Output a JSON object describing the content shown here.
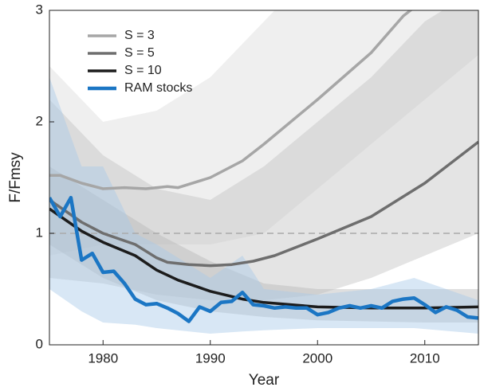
{
  "chart_data": {
    "type": "line",
    "xlabel": "Year",
    "ylabel": "F/Fmsy",
    "xlim": [
      1975,
      2015
    ],
    "ylim": [
      0,
      3
    ],
    "xticks": [
      1980,
      1990,
      2000,
      2010
    ],
    "yticks": [
      0,
      1,
      2,
      3
    ],
    "reference_line": 1,
    "legend": "upper left",
    "series": [
      {
        "name": "S = 3",
        "color": "#a6a6a6",
        "band_color": "#dcdcdc",
        "x": [
          1975,
          1976,
          1978,
          1980,
          1982,
          1984,
          1985,
          1986,
          1987,
          1990,
          1993,
          1995,
          2000,
          2005,
          2008,
          2010
        ],
        "values": [
          1.52,
          1.52,
          1.45,
          1.4,
          1.41,
          1.4,
          1.41,
          1.42,
          1.41,
          1.5,
          1.65,
          1.8,
          2.2,
          2.62,
          2.95,
          3.1
        ],
        "band_x": [
          1975,
          1980,
          1985,
          1990,
          1995,
          2000,
          2005,
          2010,
          2015
        ],
        "band_upper": [
          2.5,
          2.0,
          2.1,
          2.4,
          2.9,
          3.4,
          3.8,
          4.2,
          4.6
        ],
        "band_lower": [
          0.8,
          0.9,
          0.9,
          0.9,
          1.0,
          1.4,
          1.8,
          2.2,
          2.6
        ]
      },
      {
        "name": "S = 5",
        "color": "#6e6e6e",
        "band_color": "#c4c4c4",
        "x": [
          1975,
          1978,
          1980,
          1983,
          1985,
          1986,
          1988,
          1990,
          1992,
          1994,
          1996,
          2000,
          2005,
          2010,
          2015
        ],
        "values": [
          1.3,
          1.1,
          1.0,
          0.9,
          0.78,
          0.74,
          0.72,
          0.71,
          0.72,
          0.75,
          0.8,
          0.95,
          1.15,
          1.45,
          1.82
        ],
        "band_x": [
          1975,
          1980,
          1985,
          1990,
          1995,
          2000,
          2005,
          2010,
          2015
        ],
        "band_upper": [
          2.2,
          1.7,
          1.4,
          1.3,
          1.6,
          2.0,
          2.4,
          2.9,
          3.2
        ],
        "band_lower": [
          0.6,
          0.55,
          0.45,
          0.4,
          0.4,
          0.45,
          0.6,
          0.8,
          1.0
        ]
      },
      {
        "name": "S = 10",
        "color": "#1c1c1c",
        "band_color": "#b8b8b8",
        "x": [
          1975,
          1978,
          1980,
          1983,
          1985,
          1987,
          1990,
          1993,
          1995,
          2000,
          2005,
          2010,
          2015
        ],
        "values": [
          1.22,
          1.02,
          0.92,
          0.8,
          0.67,
          0.58,
          0.48,
          0.41,
          0.38,
          0.34,
          0.33,
          0.33,
          0.34
        ],
        "band_x": [
          1975,
          1980,
          1985,
          1990,
          1995,
          2000,
          2005,
          2010,
          2015
        ],
        "band_upper": [
          1.6,
          1.3,
          1.0,
          0.75,
          0.55,
          0.5,
          0.5,
          0.5,
          0.5
        ],
        "band_lower": [
          0.9,
          0.6,
          0.4,
          0.3,
          0.25,
          0.22,
          0.21,
          0.2,
          0.2
        ]
      },
      {
        "name": "RAM stocks",
        "color": "#1b76c4",
        "band_color": "#a9c9e8",
        "x": [
          1975,
          1976,
          1977,
          1978,
          1979,
          1980,
          1981,
          1982,
          1983,
          1984,
          1985,
          1986,
          1987,
          1988,
          1989,
          1990,
          1991,
          1992,
          1993,
          1994,
          1995,
          1996,
          1997,
          1998,
          1999,
          2000,
          2001,
          2002,
          2003,
          2004,
          2005,
          2006,
          2007,
          2008,
          2009,
          2010,
          2011,
          2012,
          2013,
          2014,
          2015
        ],
        "values": [
          1.32,
          1.15,
          1.32,
          0.76,
          0.82,
          0.65,
          0.66,
          0.55,
          0.41,
          0.36,
          0.37,
          0.33,
          0.28,
          0.21,
          0.34,
          0.3,
          0.38,
          0.39,
          0.47,
          0.36,
          0.35,
          0.33,
          0.34,
          0.33,
          0.33,
          0.27,
          0.29,
          0.33,
          0.35,
          0.33,
          0.35,
          0.33,
          0.39,
          0.41,
          0.42,
          0.36,
          0.29,
          0.34,
          0.31,
          0.25,
          0.24
        ],
        "band_x": [
          1975,
          1978,
          1980,
          1983,
          1985,
          1990,
          1993,
          1995,
          2000,
          2005,
          2009,
          2015
        ],
        "band_upper": [
          2.4,
          1.6,
          1.6,
          1.0,
          0.9,
          0.6,
          0.8,
          0.5,
          0.45,
          0.5,
          0.6,
          0.4
        ],
        "band_lower": [
          0.5,
          0.3,
          0.2,
          0.18,
          0.15,
          0.1,
          0.12,
          0.13,
          0.15,
          0.15,
          0.15,
          0.1
        ]
      }
    ]
  }
}
